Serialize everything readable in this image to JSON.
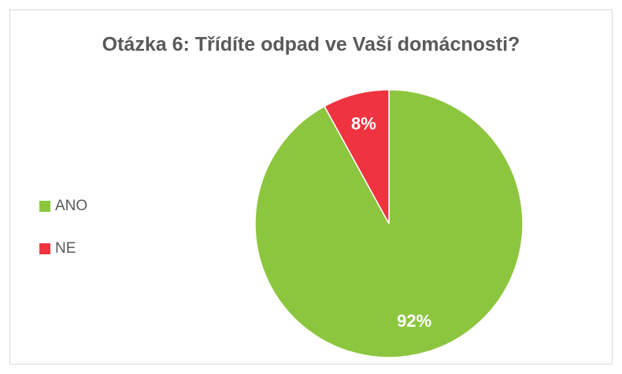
{
  "chart_data": {
    "type": "pie",
    "title": "Otázka 6: Třídíte odpad ve Vaší domácnosti?",
    "categories": [
      "ANO",
      "NE"
    ],
    "values": [
      92,
      8
    ],
    "value_labels": [
      "92%",
      "8%"
    ],
    "colors": [
      "#8cc63f",
      "#ef3340"
    ],
    "legend": "left"
  }
}
